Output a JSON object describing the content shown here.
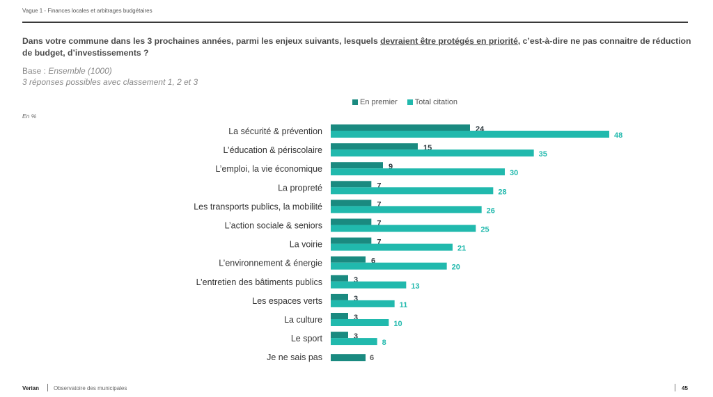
{
  "header": {
    "section_label": "Vague 1 - Finances locales et arbitrages budgétaires"
  },
  "question": {
    "part1": "Dans votre commune dans les 3 prochaines années, parmi les enjeux suivants, lesquels ",
    "underlined": "devraient être protégés en priorité",
    "part2": ", c’est-à-dire ne pas connaitre de réduction de budget, d’investissements ?"
  },
  "base": {
    "prefix": "Base : ",
    "value": "Ensemble (1000)",
    "note": "3 réponses possibles avec classement 1, 2 et 3"
  },
  "unit_label": "En %",
  "colors": {
    "en_premier": "#1a8a80",
    "total_citation": "#21b9ad",
    "label_en_premier": "#2f3a40",
    "label_total": "#21b9ad",
    "label_dontknow": "#5a5a5a"
  },
  "chart_data": {
    "type": "bar",
    "orientation": "horizontal",
    "title": "",
    "xlabel": "",
    "ylabel": "",
    "unit": "%",
    "xlim": [
      0,
      48
    ],
    "grid": false,
    "legend_position": "top-right",
    "categories": [
      "La sécurité & prévention",
      "L’éducation & périscolaire",
      "L’emploi, la vie économique",
      "La propreté",
      "Les transports publics, la mobilité",
      "L’action sociale & seniors",
      "La voirie",
      "L’environnement & énergie",
      "L’entretien des bâtiments publics",
      "Les espaces verts",
      "La culture",
      "Le sport",
      "Je ne sais pas"
    ],
    "series": [
      {
        "name": "En premier",
        "values": [
          24,
          15,
          9,
          7,
          7,
          7,
          7,
          6,
          3,
          3,
          3,
          3,
          6
        ]
      },
      {
        "name": "Total citation",
        "values": [
          48,
          35,
          30,
          28,
          26,
          25,
          21,
          20,
          13,
          11,
          10,
          8,
          null
        ]
      }
    ]
  },
  "footer": {
    "brand": "Verian",
    "title": "Observatoire des municipales",
    "page": "45"
  }
}
